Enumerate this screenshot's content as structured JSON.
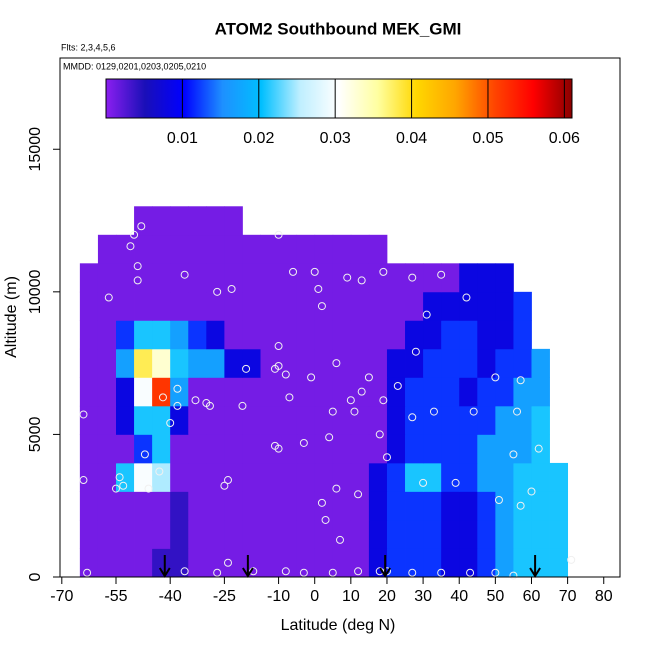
{
  "chart_data": {
    "type": "heatmap",
    "title": "ATOM2 Southbound MEK_GMI",
    "subtitle": "Flts: 2,3,4,5,6",
    "annotation": "MMDD: 0129,0201,0203,0205,0210",
    "x_label": "Latitude (deg N)",
    "y_label": "Altitude (m)",
    "xlim": [
      -70.5,
      84.5
    ],
    "xticks": [
      -70,
      -55,
      -40,
      -25,
      -10,
      0,
      10,
      20,
      30,
      40,
      50,
      60,
      70,
      80
    ],
    "ylim": [
      0,
      18200
    ],
    "yticks": [
      0,
      5000,
      10000,
      15000
    ],
    "zlim": [
      0,
      0.061
    ],
    "zticks": [
      0.01,
      0.02,
      0.03,
      0.04,
      0.05,
      0.06
    ],
    "colorscale": [
      "#8b1ff0",
      "#1a0fb8",
      "#0000ff",
      "#1e90ff",
      "#00bfff",
      "#bfefff",
      "#ffffff",
      "#ffffa0",
      "#ffd700",
      "#ffa500",
      "#ff4500",
      "#ff0000",
      "#8b0000"
    ],
    "x": [
      -62.5,
      -57.5,
      -52.5,
      -47.5,
      -42.5,
      -37.5,
      -32.5,
      -27.5,
      -22.5,
      -17.5,
      -12.5,
      -7.5,
      -2.5,
      2.5,
      7.5,
      12.5,
      17.5,
      22.5,
      27.5,
      32.5,
      37.5,
      42.5,
      47.5,
      52.5,
      57.5,
      62.5,
      67.5
    ],
    "y": [
      500,
      1500,
      2500,
      3500,
      4500,
      5500,
      6500,
      7500,
      8500,
      9500,
      10500,
      11500,
      12500
    ],
    "z": [
      [
        0.001,
        0.001,
        0.001,
        0.001,
        0.004,
        0.004,
        0.001,
        0.001,
        0.001,
        0.001,
        0.001,
        0.001,
        0.001,
        0.001,
        0.001,
        0.001,
        0.008,
        0.012,
        0.012,
        0.012,
        0.008,
        0.008,
        0.012,
        0.017,
        0.021,
        0.021,
        0.021
      ],
      [
        0.001,
        0.001,
        0.001,
        0.001,
        0.001,
        0.004,
        0.001,
        0.001,
        0.001,
        0.001,
        0.001,
        0.001,
        0.001,
        0.001,
        0.001,
        0.001,
        0.008,
        0.012,
        0.012,
        0.012,
        0.008,
        0.008,
        0.012,
        0.017,
        0.021,
        0.021,
        0.021
      ],
      [
        0.001,
        0.001,
        0.001,
        0.001,
        0.001,
        0.004,
        0.001,
        0.001,
        0.001,
        0.001,
        0.001,
        0.001,
        0.001,
        0.001,
        0.001,
        0.001,
        0.008,
        0.012,
        0.012,
        0.012,
        0.008,
        0.008,
        0.012,
        0.017,
        0.021,
        0.021,
        0.021
      ],
      [
        0.001,
        0.001,
        0.021,
        0.03,
        0.025,
        0.001,
        0.001,
        0.001,
        0.001,
        0.001,
        0.001,
        0.001,
        0.001,
        0.001,
        0.001,
        0.001,
        0.008,
        0.012,
        0.021,
        0.021,
        0.012,
        0.012,
        0.017,
        0.017,
        0.021,
        0.021,
        0.021
      ],
      [
        0.001,
        0.001,
        0.001,
        0.012,
        0.021,
        0.001,
        0.001,
        0.001,
        0.001,
        0.001,
        0.001,
        0.001,
        0.001,
        0.001,
        0.001,
        0.001,
        0.001,
        0.008,
        0.012,
        0.012,
        0.012,
        0.012,
        0.017,
        0.017,
        0.017,
        0.021,
        null
      ],
      [
        0.001,
        0.001,
        0.008,
        0.021,
        0.021,
        0.008,
        0.001,
        0.001,
        0.001,
        0.001,
        0.001,
        0.001,
        0.001,
        0.001,
        0.001,
        0.001,
        0.001,
        0.008,
        0.012,
        0.012,
        0.012,
        0.012,
        0.012,
        0.017,
        0.017,
        0.021,
        null
      ],
      [
        0.001,
        0.001,
        0.008,
        0.03,
        0.052,
        0.017,
        0.001,
        0.001,
        0.001,
        0.001,
        0.001,
        0.001,
        0.001,
        0.001,
        0.001,
        0.001,
        0.001,
        0.008,
        0.012,
        0.012,
        0.012,
        0.008,
        0.012,
        0.012,
        0.017,
        0.017,
        null
      ],
      [
        0.001,
        0.001,
        0.017,
        0.038,
        0.033,
        0.021,
        0.017,
        0.017,
        0.008,
        0.008,
        0.001,
        0.001,
        0.001,
        0.001,
        0.001,
        0.001,
        0.001,
        0.008,
        0.008,
        0.012,
        0.012,
        0.012,
        0.008,
        0.012,
        0.012,
        0.017,
        null
      ],
      [
        0.001,
        0.001,
        0.012,
        0.021,
        0.021,
        0.017,
        0.012,
        0.008,
        0.001,
        0.001,
        0.001,
        0.001,
        0.001,
        0.001,
        0.001,
        0.001,
        0.001,
        0.001,
        0.008,
        0.008,
        0.012,
        0.012,
        0.008,
        0.008,
        0.012,
        null,
        null
      ],
      [
        0.001,
        0.001,
        0.001,
        0.001,
        0.001,
        0.001,
        0.001,
        0.001,
        0.001,
        0.001,
        0.001,
        0.001,
        0.001,
        0.001,
        0.001,
        0.001,
        0.001,
        0.001,
        0.001,
        0.008,
        0.008,
        0.008,
        0.008,
        0.008,
        0.012,
        null,
        null
      ],
      [
        0.001,
        0.001,
        0.001,
        0.001,
        0.001,
        0.001,
        0.001,
        0.001,
        0.001,
        0.001,
        0.001,
        0.001,
        0.001,
        0.001,
        0.001,
        0.001,
        0.001,
        0.001,
        0.001,
        0.001,
        0.001,
        0.008,
        0.008,
        0.008,
        null,
        null,
        null
      ],
      [
        null,
        0.001,
        0.001,
        0.001,
        0.001,
        0.001,
        0.001,
        0.001,
        0.001,
        0.001,
        0.001,
        0.001,
        0.001,
        0.001,
        0.001,
        0.001,
        0.001,
        null,
        null,
        null,
        null,
        null,
        null,
        null,
        null,
        null,
        null
      ],
      [
        null,
        null,
        null,
        0.001,
        0.001,
        0.001,
        0.001,
        0.001,
        0.001,
        null,
        null,
        null,
        null,
        null,
        null,
        null,
        null,
        null,
        null,
        null,
        null,
        null,
        null,
        null,
        null,
        null,
        null
      ]
    ],
    "points": {
      "x": [
        -64,
        -64,
        -63,
        -57,
        -55,
        -54,
        -53,
        -50,
        -48,
        -51,
        -49,
        -49,
        -47,
        -46,
        -43,
        -42,
        -40,
        -38,
        -36,
        -38,
        -33,
        -30,
        -29,
        -27,
        -25,
        -24,
        -23,
        -24,
        -20,
        -19,
        -10,
        -10,
        -10,
        -11,
        -11,
        -10,
        -8,
        -6,
        -7,
        -3,
        -1,
        0,
        1,
        2,
        2,
        3,
        4,
        5,
        6,
        6,
        7,
        9,
        10,
        11,
        13,
        13,
        12,
        15,
        18,
        18,
        19,
        19,
        20,
        23,
        27,
        27,
        28,
        30,
        31,
        33,
        35,
        39,
        42,
        44,
        50,
        51,
        55,
        56,
        57,
        57,
        60,
        62,
        -36,
        -27,
        -17,
        -8,
        -3,
        5,
        12,
        20,
        27,
        35,
        43,
        50,
        55,
        71
      ],
      "y": [
        3400,
        5700,
        150,
        9800,
        3100,
        3500,
        3200,
        12000,
        12300,
        11600,
        10400,
        10900,
        4300,
        3100,
        3700,
        6300,
        5400,
        6000,
        10600,
        6600,
        6200,
        6100,
        6000,
        10000,
        3200,
        3400,
        10100,
        500,
        6000,
        7300,
        12000,
        8100,
        7400,
        7300,
        4600,
        4500,
        7100,
        10700,
        6300,
        4700,
        7000,
        10700,
        10100,
        9500,
        2600,
        2000,
        4900,
        5800,
        3100,
        7500,
        1300,
        10500,
        6200,
        5800,
        10400,
        6500,
        2900,
        7000,
        200,
        5000,
        6200,
        10700,
        4200,
        6700,
        10500,
        5600,
        7900,
        3300,
        9200,
        5800,
        10600,
        3300,
        9800,
        5800,
        7000,
        2700,
        4300,
        5800,
        2500,
        6900,
        3000,
        4500,
        200,
        150,
        200,
        200,
        150,
        150,
        200,
        200,
        150,
        150,
        150,
        150,
        50,
        600
      ]
    },
    "arrows": [
      -41.5,
      -18.5,
      19.5,
      61
    ]
  }
}
